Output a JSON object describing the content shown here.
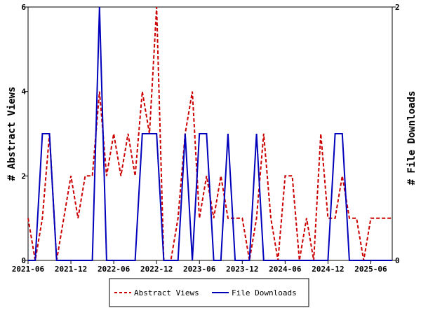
{
  "chart_data": {
    "type": "line",
    "x_tick_labels": [
      "2021-06",
      "2021-12",
      "2022-06",
      "2022-12",
      "2023-06",
      "2023-12",
      "2024-06",
      "2024-12",
      "2025-06"
    ],
    "y_left": {
      "label": "# Abstract Views",
      "ticks": [
        "0",
        "2",
        "4",
        "6"
      ],
      "range": [
        0,
        6
      ]
    },
    "y_right": {
      "label": "# File Downloads",
      "ticks": [
        "0",
        "2"
      ],
      "range": [
        0,
        2
      ]
    },
    "x_range_months": [
      "2021-06",
      "2025-09"
    ],
    "grid": false,
    "legend_position": "bottom",
    "series": [
      {
        "name": "Abstract Views",
        "axis": "left",
        "color": "#cc0000",
        "style": "dashed",
        "x": [
          "2021-06",
          "2021-07",
          "2021-08",
          "2021-09",
          "2021-10",
          "2021-11",
          "2021-12",
          "2022-01",
          "2022-02",
          "2022-03",
          "2022-04",
          "2022-05",
          "2022-06",
          "2022-07",
          "2022-08",
          "2022-09",
          "2022-10",
          "2022-11",
          "2022-12",
          "2023-01",
          "2023-02",
          "2023-03",
          "2023-04",
          "2023-05",
          "2023-06",
          "2023-07",
          "2023-08",
          "2023-09",
          "2023-10",
          "2023-11",
          "2023-12",
          "2024-01",
          "2024-02",
          "2024-03",
          "2024-04",
          "2024-05",
          "2024-06",
          "2024-07",
          "2024-08",
          "2024-09",
          "2024-10",
          "2024-11",
          "2024-12",
          "2025-01",
          "2025-02",
          "2025-03",
          "2025-04",
          "2025-05",
          "2025-06",
          "2025-07",
          "2025-08",
          "2025-09"
        ],
        "values": [
          1,
          0,
          1,
          3,
          0,
          1,
          2,
          1,
          2,
          2,
          4,
          2,
          3,
          2,
          3,
          2,
          4,
          3,
          6,
          0,
          0,
          1,
          3,
          4,
          1,
          2,
          1,
          2,
          1,
          1,
          1,
          0,
          1,
          3,
          1,
          0,
          2,
          2,
          0,
          1,
          0,
          3,
          1,
          1,
          2,
          1,
          1,
          0,
          1,
          1,
          1,
          1
        ]
      },
      {
        "name": "File Downloads",
        "axis": "right",
        "color": "#0000bb",
        "style": "solid",
        "x": [
          "2021-06",
          "2021-07",
          "2021-08",
          "2021-09",
          "2021-10",
          "2021-11",
          "2021-12",
          "2022-01",
          "2022-02",
          "2022-03",
          "2022-04",
          "2022-05",
          "2022-06",
          "2022-07",
          "2022-08",
          "2022-09",
          "2022-10",
          "2022-11",
          "2022-12",
          "2023-01",
          "2023-02",
          "2023-03",
          "2023-04",
          "2023-05",
          "2023-06",
          "2023-07",
          "2023-08",
          "2023-09",
          "2023-10",
          "2023-11",
          "2023-12",
          "2024-01",
          "2024-02",
          "2024-03",
          "2024-04",
          "2024-05",
          "2024-06",
          "2024-07",
          "2024-08",
          "2024-09",
          "2024-10",
          "2024-11",
          "2024-12",
          "2025-01",
          "2025-02",
          "2025-03",
          "2025-04",
          "2025-05",
          "2025-06",
          "2025-07",
          "2025-08",
          "2025-09"
        ],
        "values": [
          0,
          0,
          1,
          1,
          0,
          0,
          0,
          0,
          0,
          0,
          2,
          0,
          0,
          0,
          0,
          0,
          1,
          1,
          1,
          0,
          0,
          0,
          1,
          0,
          1,
          1,
          0,
          0,
          1,
          0,
          0,
          0,
          1,
          0,
          0,
          0,
          0,
          0,
          0,
          0,
          0,
          0,
          0,
          1,
          1,
          0,
          0,
          0,
          0,
          0,
          0,
          0
        ]
      }
    ]
  }
}
